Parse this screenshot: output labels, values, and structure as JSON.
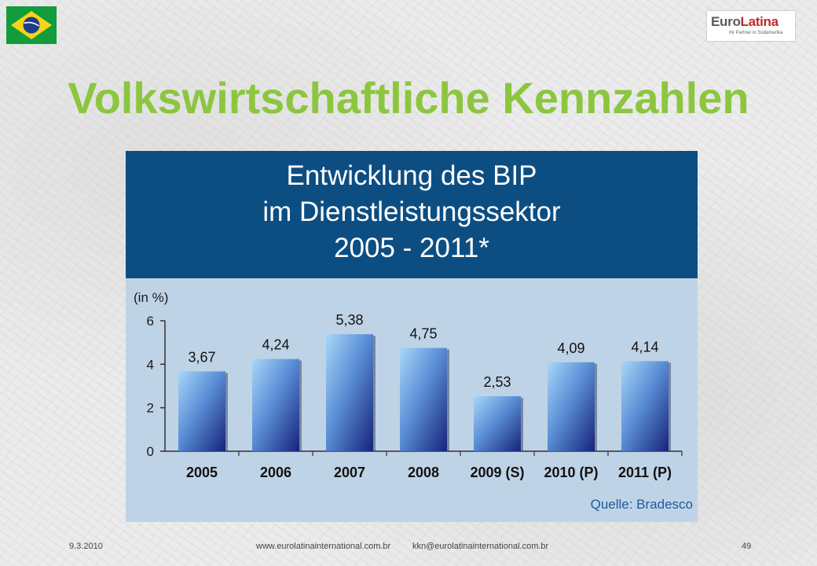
{
  "slide": {
    "title": "Volkswirtschaftliche Kennzahlen",
    "logo": {
      "part1": "Euro",
      "part2": "Latina",
      "tagline": "Ihr Partner in Südamerika"
    },
    "flag_icon": "brazil-flag-icon"
  },
  "chart_header": {
    "line1": "Entwicklung des BIP",
    "line2": "im Dienstleistungssektor",
    "line3": "2005 - 2011*"
  },
  "chart_data": {
    "type": "bar",
    "title": "Entwicklung des BIP im Dienstleistungssektor 2005 - 2011*",
    "ylabel": "(in %)",
    "xlabel": "",
    "categories": [
      "2005",
      "2006",
      "2007",
      "2008",
      "2009 (S)",
      "2010 (P)",
      "2011 (P)"
    ],
    "values": [
      3.67,
      4.24,
      5.38,
      4.75,
      2.53,
      4.09,
      4.14
    ],
    "value_labels": [
      "3,67",
      "4,24",
      "5,38",
      "4,75",
      "2,53",
      "4,09",
      "4,14"
    ],
    "ylim": [
      0,
      6
    ],
    "yticks": [
      "0",
      "2",
      "4",
      "6"
    ],
    "grid": false,
    "source": "Quelle: Bradesco",
    "colors": {
      "bar_light": "#9fd0f5",
      "bar_dark": "#1c2c7a",
      "header": "#0d4e82",
      "plot_bg": "#bfd3e6"
    }
  },
  "footer": {
    "date": "9.3.2010",
    "website": "www.eurolatinainternational.com.br",
    "email": "kkn@eurolatinainternational.com.br",
    "page": "49"
  }
}
